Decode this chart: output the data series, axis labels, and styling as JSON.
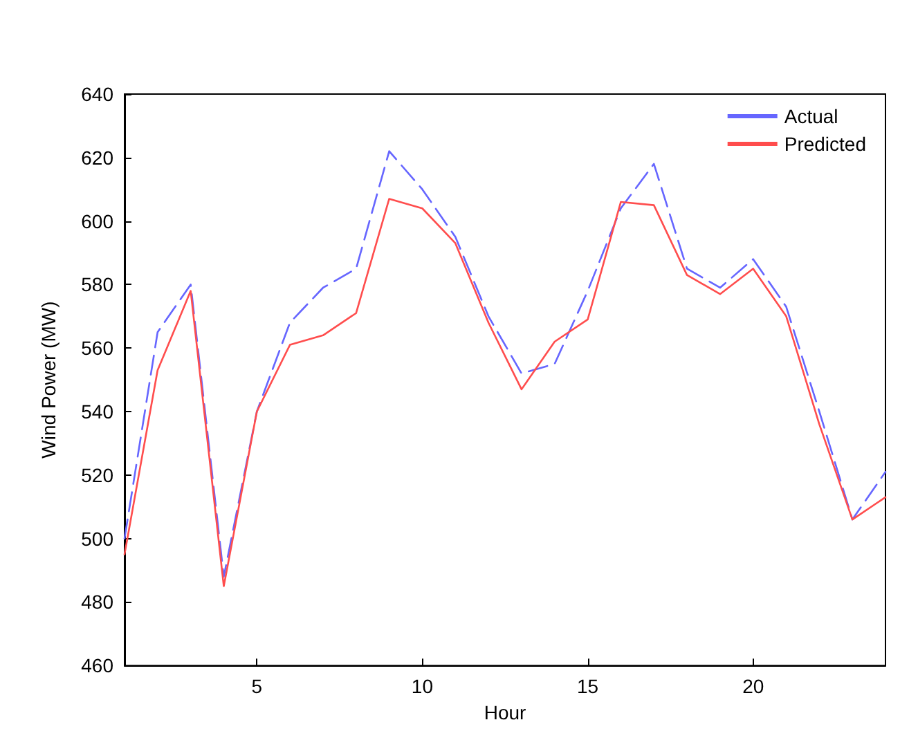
{
  "chart_data": {
    "type": "line",
    "xlabel": "Hour",
    "ylabel": "Wind Power (MW)",
    "x": [
      1,
      2,
      3,
      4,
      5,
      6,
      7,
      8,
      9,
      10,
      11,
      12,
      13,
      14,
      15,
      16,
      17,
      18,
      19,
      20,
      21,
      22,
      23,
      24
    ],
    "series": [
      {
        "name": "Actual",
        "color": "#6666ff",
        "line_style": "dashed",
        "values": [
          500,
          565,
          580,
          488,
          540,
          568,
          579,
          585,
          622,
          610,
          595,
          570,
          552,
          555,
          578,
          604,
          618,
          585,
          579,
          588,
          573,
          540,
          506,
          521
        ]
      },
      {
        "name": "Predicted",
        "color": "#ff4d4d",
        "line_style": "solid",
        "values": [
          495,
          553,
          578,
          485,
          540,
          561,
          564,
          571,
          607,
          604,
          593,
          568,
          547,
          562,
          569,
          606,
          605,
          583,
          577,
          585,
          570,
          536,
          506,
          513
        ]
      }
    ],
    "xlim": [
      1,
      24
    ],
    "xticks": [
      5,
      10,
      15,
      20
    ],
    "ylim": [
      460,
      640
    ],
    "yticks": [
      460,
      480,
      500,
      520,
      540,
      560,
      580,
      600,
      620,
      640
    ],
    "grid": false,
    "legend": "top right",
    "marker": "none"
  }
}
